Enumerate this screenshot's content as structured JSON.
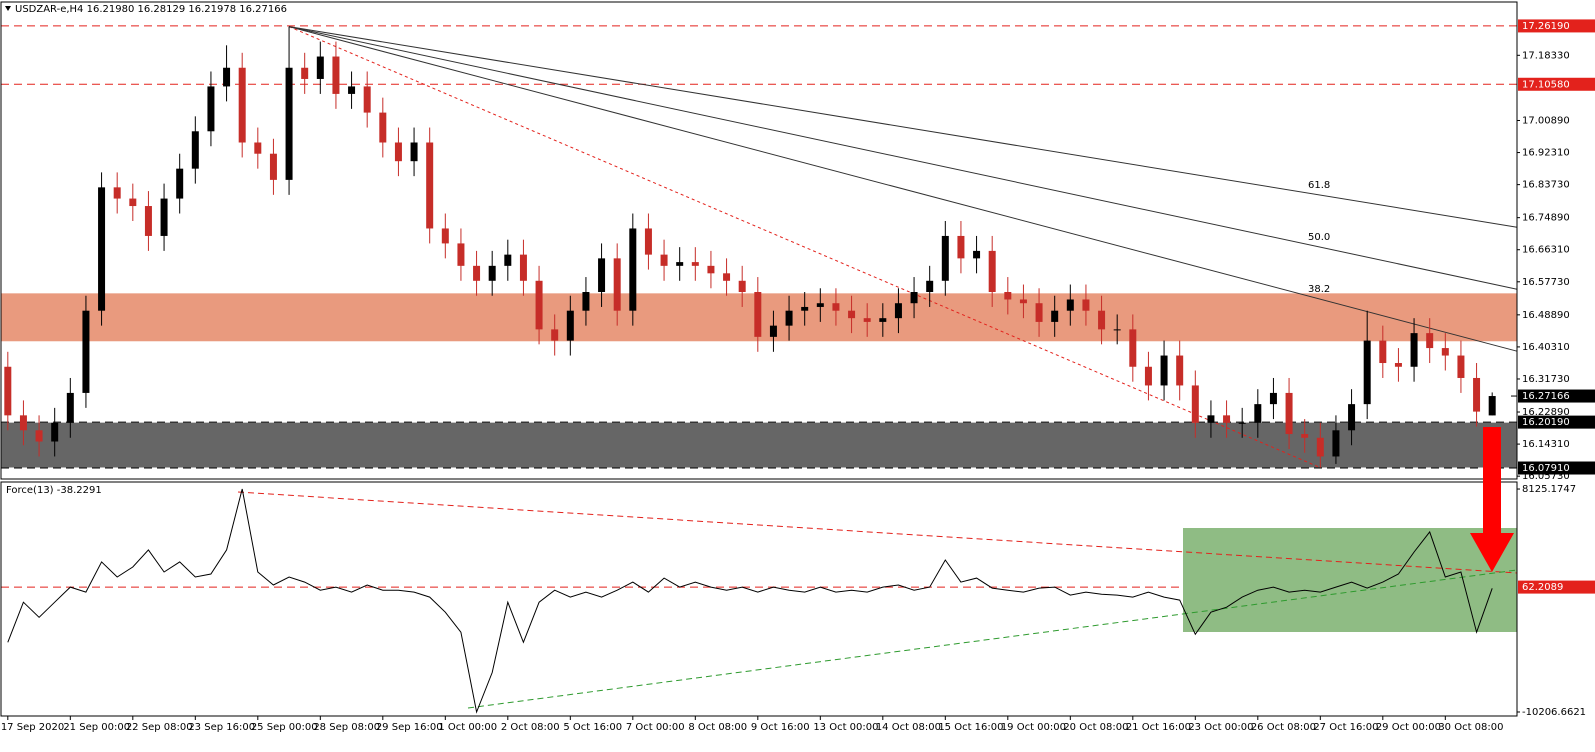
{
  "chart_data": [
    {
      "type": "candlestick",
      "title": "USDZAR-e,H4  16.21980 16.28129 16.21978 16.27166",
      "categories": [
        "17 Sep 2020",
        null,
        null,
        null,
        "21 Sep 00:00",
        null,
        null,
        null,
        "22 Sep 08:00",
        null,
        null,
        null,
        "23 Sep 16:00",
        null,
        null,
        null,
        "25 Sep 00:00",
        null,
        null,
        null,
        "28 Sep 08:00",
        null,
        null,
        null,
        "29 Sep 16:00",
        null,
        null,
        null,
        "1 Oct 00:00",
        null,
        null,
        null,
        "2 Oct 08:00",
        null,
        null,
        null,
        "5 Oct 16:00",
        null,
        null,
        null,
        "7 Oct 00:00",
        null,
        null,
        null,
        "8 Oct 08:00",
        null,
        null,
        null,
        "9 Oct 16:00",
        null,
        null,
        null,
        "13 Oct 00:00",
        null,
        null,
        null,
        "14 Oct 08:00",
        null,
        null,
        null,
        "15 Oct 16:00",
        null,
        null,
        null,
        "19 Oct 00:00",
        null,
        null,
        null,
        "20 Oct 08:00",
        null,
        null,
        null,
        "21 Oct 16:00",
        null,
        null,
        null,
        "23 Oct 00:00",
        null,
        null,
        null,
        "26 Oct 08:00",
        null,
        null,
        null,
        "27 Oct 16:00",
        null,
        null,
        null,
        "29 Oct 00:00",
        null,
        null,
        null,
        "30 Oct 08:00",
        null,
        null,
        null
      ],
      "open": [
        16.35,
        16.22,
        16.18,
        16.15,
        16.2,
        16.28,
        16.5,
        16.83,
        16.8,
        16.78,
        16.7,
        16.8,
        16.88,
        16.98,
        17.1,
        17.15,
        16.95,
        16.92,
        16.85,
        17.15,
        17.12,
        17.18,
        17.08,
        17.1,
        17.03,
        16.95,
        16.9,
        16.95,
        16.72,
        16.68,
        16.62,
        16.58,
        16.62,
        16.65,
        16.58,
        16.45,
        16.42,
        16.5,
        16.55,
        16.64,
        16.5,
        16.72,
        16.65,
        16.62,
        16.63,
        16.62,
        16.6,
        16.58,
        16.55,
        16.43,
        16.46,
        16.5,
        16.51,
        16.52,
        16.5,
        16.48,
        16.47,
        16.48,
        16.52,
        16.55,
        16.58,
        16.7,
        16.64,
        16.66,
        16.55,
        16.53,
        16.52,
        16.47,
        16.5,
        16.53,
        16.5,
        16.45,
        16.45,
        16.35,
        16.3,
        16.38,
        16.3,
        16.2,
        16.22,
        16.2,
        16.2,
        16.25,
        16.28,
        16.17,
        16.16,
        16.11,
        16.18,
        16.25,
        16.42,
        16.36,
        16.35,
        16.44,
        16.4,
        16.38,
        16.32,
        16.2198
      ],
      "high": [
        16.39,
        16.26,
        16.22,
        16.24,
        16.32,
        16.54,
        16.87,
        16.87,
        16.84,
        16.82,
        16.84,
        16.92,
        17.02,
        17.14,
        17.21,
        17.19,
        16.99,
        16.96,
        17.26,
        17.19,
        17.22,
        17.22,
        17.14,
        17.14,
        17.07,
        16.99,
        16.99,
        16.99,
        16.76,
        16.72,
        16.66,
        16.66,
        16.69,
        16.69,
        16.62,
        16.49,
        16.54,
        16.59,
        16.68,
        16.68,
        16.76,
        16.76,
        16.69,
        16.67,
        16.67,
        16.66,
        16.64,
        16.62,
        16.59,
        16.5,
        16.54,
        16.55,
        16.56,
        16.56,
        16.54,
        16.52,
        16.52,
        16.56,
        16.59,
        16.62,
        16.74,
        16.74,
        16.7,
        16.7,
        16.59,
        16.57,
        16.56,
        16.54,
        16.57,
        16.57,
        16.54,
        16.49,
        16.49,
        16.39,
        16.42,
        16.42,
        16.34,
        16.26,
        16.26,
        16.24,
        16.29,
        16.32,
        16.32,
        16.21,
        16.2,
        16.22,
        16.29,
        16.5,
        16.46,
        16.4,
        16.48,
        16.48,
        16.44,
        16.42,
        16.36,
        16.28129
      ],
      "low": [
        16.18,
        16.14,
        16.11,
        16.11,
        16.16,
        16.24,
        16.46,
        16.76,
        16.74,
        16.66,
        16.66,
        16.76,
        16.84,
        16.94,
        17.06,
        16.91,
        16.88,
        16.81,
        16.81,
        17.08,
        17.08,
        17.04,
        17.04,
        16.99,
        16.91,
        16.86,
        16.86,
        16.68,
        16.64,
        16.58,
        16.54,
        16.54,
        16.58,
        16.54,
        16.41,
        16.38,
        16.38,
        16.46,
        16.51,
        16.46,
        16.46,
        16.61,
        16.58,
        16.58,
        16.58,
        16.56,
        16.54,
        16.51,
        16.39,
        16.39,
        16.42,
        16.46,
        16.47,
        16.46,
        16.44,
        16.43,
        16.43,
        16.44,
        16.48,
        16.51,
        16.54,
        16.6,
        16.6,
        16.51,
        16.49,
        16.48,
        16.43,
        16.43,
        16.46,
        16.46,
        16.41,
        16.41,
        16.31,
        16.26,
        16.26,
        16.26,
        16.16,
        16.16,
        16.16,
        16.16,
        16.16,
        16.21,
        16.13,
        16.12,
        16.08,
        16.09,
        16.14,
        16.21,
        16.32,
        16.31,
        16.31,
        16.36,
        16.34,
        16.28,
        16.19,
        16.21978
      ],
      "close": [
        16.22,
        16.18,
        16.15,
        16.2,
        16.28,
        16.5,
        16.83,
        16.8,
        16.78,
        16.7,
        16.8,
        16.88,
        16.98,
        17.1,
        17.15,
        16.95,
        16.92,
        16.85,
        17.15,
        17.12,
        17.18,
        17.08,
        17.1,
        17.03,
        16.95,
        16.9,
        16.95,
        16.72,
        16.68,
        16.62,
        16.58,
        16.62,
        16.65,
        16.58,
        16.45,
        16.42,
        16.5,
        16.55,
        16.64,
        16.5,
        16.72,
        16.65,
        16.62,
        16.63,
        16.62,
        16.6,
        16.58,
        16.55,
        16.43,
        16.46,
        16.5,
        16.51,
        16.52,
        16.5,
        16.48,
        16.47,
        16.48,
        16.52,
        16.55,
        16.58,
        16.7,
        16.64,
        16.66,
        16.55,
        16.53,
        16.52,
        16.47,
        16.5,
        16.53,
        16.5,
        16.45,
        16.45,
        16.35,
        16.3,
        16.38,
        16.3,
        16.2,
        16.22,
        16.2,
        16.2,
        16.25,
        16.28,
        16.17,
        16.16,
        16.11,
        16.18,
        16.25,
        16.42,
        16.36,
        16.35,
        16.44,
        16.4,
        16.38,
        16.32,
        16.23,
        16.27166
      ],
      "up_color": "#000000",
      "down_color": "#c62d28",
      "ylim": [
        16.0497,
        17.3259
      ],
      "yticks": [
        {
          "value": 17.1833,
          "label": "17.18330"
        },
        {
          "value": 17.0089,
          "label": "17.00890"
        },
        {
          "value": 16.9231,
          "label": "16.92310"
        },
        {
          "value": 16.8373,
          "label": "16.83730"
        },
        {
          "value": 16.7489,
          "label": "16.74890"
        },
        {
          "value": 16.6631,
          "label": "16.66310"
        },
        {
          "value": 16.5773,
          "label": "16.57730"
        },
        {
          "value": 16.4889,
          "label": "16.48890"
        },
        {
          "value": 16.4031,
          "label": "16.40310"
        },
        {
          "value": 16.3173,
          "label": "16.31730"
        },
        {
          "value": 16.2289,
          "label": "16.22890"
        },
        {
          "value": 16.1431,
          "label": "16.14310"
        },
        {
          "value": 16.0573,
          "label": "16.05730"
        }
      ],
      "levels": [
        {
          "value": 17.2619,
          "label": "17.26190",
          "color": "#e3221c"
        },
        {
          "value": 17.1058,
          "label": "17.10580",
          "color": "#e3221c"
        },
        {
          "value": 16.2019,
          "label": "16.20190",
          "color": "#000000"
        },
        {
          "value": 16.0791,
          "label": "16.07910",
          "color": "#000000"
        }
      ],
      "current_price": 16.27166,
      "resistance_zone": {
        "range": [
          16.4182,
          16.5464
        ],
        "color": "#e99a7e"
      },
      "support_zone": {
        "range": [
          16.0791,
          16.2019
        ],
        "color": "#666666"
      },
      "fan": {
        "levels": [
          38.2,
          {
            "value": 50,
            "label": "50.0"
          },
          61.8
        ],
        "color": "#333333",
        "trend_color": "#e3221c"
      }
    },
    {
      "type": "line",
      "title": "Force(13) -38.2291",
      "values": [
        -4480,
        -1180,
        -2420,
        -1180,
        60,
        -350,
        2130,
        890,
        1710,
        3120,
        1300,
        2130,
        890,
        1140,
        3120,
        8125.1747,
        1300,
        230,
        890,
        475,
        -190,
        60,
        -350,
        230,
        -190,
        -190,
        -350,
        -760,
        -2000,
        -3650,
        -10206.6621,
        -6960,
        -1180,
        -4480,
        -1180,
        -190,
        -760,
        -350,
        -760,
        -190,
        475,
        -350,
        800,
        60,
        475,
        60,
        -190,
        60,
        -350,
        60,
        -190,
        -350,
        60,
        -350,
        -190,
        -350,
        60,
        230,
        -190,
        60,
        2290,
        475,
        800,
        -20,
        -190,
        -350,
        -20,
        60,
        -600,
        -350,
        -520,
        -600,
        -760,
        -350,
        -760,
        -1010,
        -3820,
        -2000,
        -1590,
        -760,
        -190,
        60,
        -350,
        -190,
        -350,
        60,
        475,
        -20,
        475,
        1140,
        2950,
        4600,
        890,
        1300,
        -3650,
        -38.2291
      ],
      "color": "#000000",
      "ylim": [
        -10537,
        8703
      ],
      "yticks": [
        8125.1747,
        -10206.6621
      ],
      "levels": [
        {
          "value": 62.2089,
          "color": "#e3221c"
        }
      ]
    }
  ]
}
